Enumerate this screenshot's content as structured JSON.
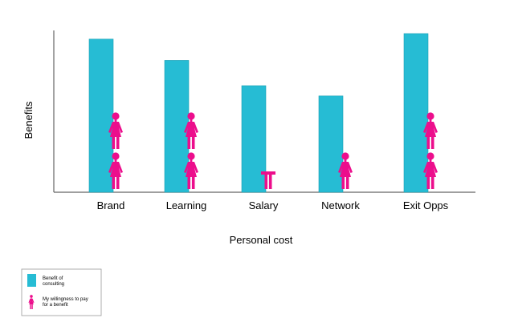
{
  "chart_data": {
    "type": "bar",
    "categories": [
      "Brand",
      "Learning",
      "Salary",
      "Network",
      "Exit Opps"
    ],
    "series": [
      {
        "name": "Benefit of consulting",
        "values": [
          19.4,
          16.7,
          13.5,
          12.2,
          20.1
        ]
      },
      {
        "name": "My willingness to pay for a benefit",
        "values": [
          2,
          2,
          0.4,
          1,
          2
        ]
      }
    ],
    "xlabel": "Personal cost",
    "ylabel": "Benefits",
    "ylim": [
      0,
      20.5
    ],
    "grid": false,
    "legend": "bottom-left",
    "colors": {
      "bar": "#26bcd4",
      "icon": "#ec0e8c",
      "axis": "#666666"
    },
    "icon": "female-person-icon"
  },
  "legend": {
    "items": [
      {
        "line1": "Benefit of",
        "line2": "consulting"
      },
      {
        "line1": "My willingness to pay",
        "line2": "for a benefit"
      }
    ]
  }
}
